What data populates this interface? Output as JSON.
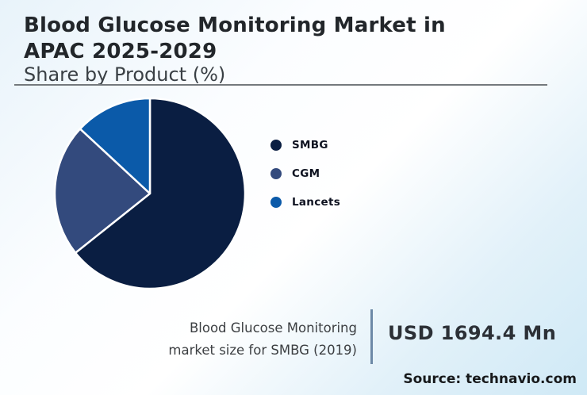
{
  "header": {
    "title_line1": "Blood Glucose Monitoring Market in",
    "title_line2": "APAC 2025-2029",
    "subtitle": "Share by Product (%)"
  },
  "chart_data": {
    "type": "pie",
    "title": "Blood Glucose Monitoring Market in APAC 2025-2029",
    "subtitle": "Share by Product (%)",
    "unit": "%",
    "start_angle_deg": -90,
    "direction": "clockwise",
    "legend_position": "right",
    "segments": [
      {
        "label": "SMBG",
        "value": 64.3,
        "color": "#0a1e42"
      },
      {
        "label": "CGM",
        "value": 22.6,
        "color": "#334a7d"
      },
      {
        "label": "Lancets",
        "value": 13.1,
        "color": "#0b5aa9"
      }
    ],
    "slice_border_color": "#ffffff"
  },
  "footer": {
    "stat_label_line1": "Blood Glucose Monitoring",
    "stat_label_line2": "market size for SMBG (2019)",
    "stat_value": "USD 1694.4 Mn",
    "source": "Source: technavio.com"
  },
  "colors": {
    "background_start": "#e8f3fa",
    "background_end": "#cfe9f6",
    "title_text": "#22262a",
    "subtitle_text": "#3a4045",
    "header_rule": "#74797d",
    "stat_divider": "#6d89a7"
  }
}
